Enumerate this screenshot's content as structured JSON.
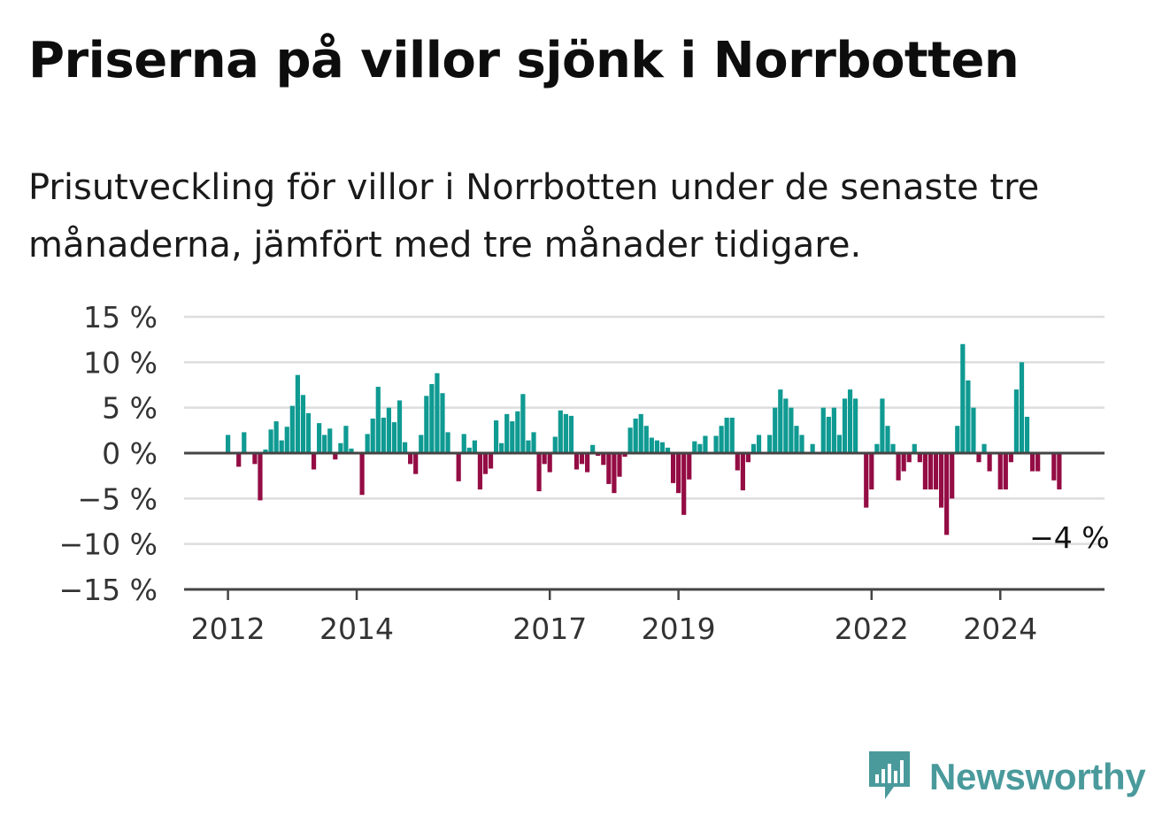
{
  "title": "Priserna på villor sjönk i Norrbotten",
  "subtitle": "Prisutveckling för villor i Norrbotten under de senaste tre månaderna, jämfört med tre månader tidigare.",
  "brand": {
    "name": "Newsworthy",
    "icon": "newsworthy-logo-icon",
    "color": "#4a9a9c"
  },
  "chart_data": {
    "type": "bar",
    "title": "",
    "xlabel": "",
    "ylabel": "",
    "ylim": [
      -15,
      15
    ],
    "y_ticks": [
      15,
      10,
      5,
      0,
      -5,
      -10,
      -15
    ],
    "y_tick_labels": [
      "15 %",
      "10 %",
      "5 %",
      "0 %",
      "−5 %",
      "−10 %",
      "−15 %"
    ],
    "x_tick_labels": [
      "2012",
      "2014",
      "2017",
      "2019",
      "2022",
      "2024"
    ],
    "x_tick_dates": [
      "2012-01",
      "2014-01",
      "2017-01",
      "2019-01",
      "2022-01",
      "2024-01"
    ],
    "x_start": "2012-01",
    "frequency": "monthly",
    "grid": true,
    "colors": {
      "positive": "#0f9a92",
      "negative": "#940c44",
      "grid": "#dddddd",
      "axis": "#444444"
    },
    "values": [
      2,
      0,
      -1.5,
      2.3,
      0,
      -1.2,
      -5.2,
      0.4,
      2.6,
      3.5,
      1.4,
      2.9,
      5.2,
      8.6,
      6.4,
      4.4,
      -1.8,
      3.3,
      2,
      2.7,
      -0.7,
      1.1,
      3,
      0.5,
      0,
      -4.6,
      2.1,
      3.8,
      7.3,
      3.9,
      5,
      3.4,
      5.8,
      1.2,
      -1.2,
      -2.3,
      2,
      6.3,
      7.6,
      8.8,
      6.6,
      2.3,
      0,
      -3.1,
      2.1,
      0.6,
      1.4,
      -4,
      -2.3,
      -1.7,
      3.6,
      1.1,
      4.3,
      3.5,
      4.6,
      6.5,
      1.4,
      2.3,
      -4.2,
      -1.2,
      -2.1,
      1.8,
      4.7,
      4.3,
      4.1,
      -1.8,
      -1.2,
      -2.1,
      0.9,
      -0.3,
      -1.3,
      -3.4,
      -4.4,
      -2.6,
      -0.4,
      2.8,
      3.8,
      4.3,
      3,
      1.7,
      1.4,
      1.2,
      0.6,
      -3.3,
      -4.4,
      -6.8,
      -2.9,
      1.3,
      1,
      1.9,
      0,
      1.9,
      3,
      3.9,
      3.9,
      -1.9,
      -4.1,
      -1,
      1,
      2,
      0,
      2,
      5,
      7,
      6,
      5,
      3,
      2,
      0,
      1,
      0,
      5,
      4,
      5,
      2,
      6,
      7,
      6,
      0,
      -6,
      -4,
      1,
      6,
      3,
      1,
      -3,
      -2,
      -1,
      1,
      -1,
      -4,
      -4,
      -4,
      -6,
      -9,
      -5,
      3,
      12,
      8,
      5,
      -1,
      1,
      -2,
      0,
      -4,
      -4,
      -1,
      7,
      10,
      4,
      -2,
      -2,
      0,
      0,
      -3,
      -4
    ],
    "annotation": {
      "label": "−4 %",
      "value": -4,
      "date": "2025-02"
    }
  }
}
